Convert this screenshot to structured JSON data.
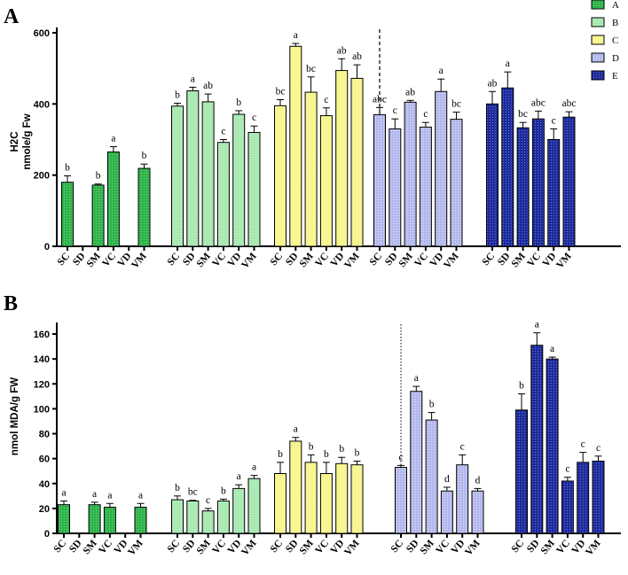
{
  "legend": [
    {
      "label": "A",
      "color": "#2db34a"
    },
    {
      "label": "B",
      "color": "#a6e8b0"
    },
    {
      "label": "C",
      "color": "#f7f58c"
    },
    {
      "label": "D",
      "color": "#b3b8ec"
    },
    {
      "label": "E",
      "color": "#1d2b9c"
    }
  ],
  "chart_data": [
    {
      "panel": "A",
      "type": "bar",
      "ylabel_line1": "H2C",
      "ylabel_line2": "nmole/g Fw",
      "ylim": [
        0,
        600
      ],
      "yticks": [
        0,
        200,
        400,
        600
      ],
      "categories": [
        "SC",
        "SD",
        "SM",
        "VC",
        "VD",
        "VM"
      ],
      "separator": "dashed",
      "groups": [
        {
          "name": "A",
          "values": [
            180,
            null,
            172,
            265,
            null,
            219
          ],
          "errors": [
            18,
            null,
            3,
            15,
            null,
            12
          ],
          "letters": [
            "b",
            "",
            "b",
            "a",
            "",
            "b"
          ]
        },
        {
          "name": "B",
          "values": [
            394,
            437,
            406,
            292,
            371,
            320
          ],
          "errors": [
            8,
            10,
            22,
            8,
            10,
            18
          ],
          "letters": [
            "b",
            "a",
            "ab",
            "c",
            "b",
            "c"
          ]
        },
        {
          "name": "C",
          "values": [
            395,
            562,
            433,
            367,
            494,
            472
          ],
          "errors": [
            17,
            8,
            43,
            22,
            33,
            38
          ],
          "letters": [
            "bc",
            "a",
            "bc",
            "c",
            "ab",
            "ab"
          ]
        },
        {
          "name": "D",
          "values": [
            370,
            330,
            405,
            335,
            435,
            357
          ],
          "errors": [
            20,
            28,
            5,
            13,
            35,
            20
          ],
          "letters": [
            "abc",
            "c",
            "ab",
            "c",
            "a",
            "bc"
          ]
        },
        {
          "name": "E",
          "values": [
            400,
            445,
            333,
            358,
            300,
            363
          ],
          "errors": [
            35,
            45,
            15,
            22,
            30,
            15
          ],
          "letters": [
            "ab",
            "a",
            "bc",
            "abc",
            "c",
            "abc"
          ]
        }
      ]
    },
    {
      "panel": "B",
      "type": "bar",
      "ylabel_line1": "nmol MDA/g FW",
      "ylim": [
        0,
        165
      ],
      "yticks": [
        0,
        20,
        40,
        60,
        80,
        100,
        120,
        140,
        160
      ],
      "categories": [
        "SC",
        "SD",
        "SM",
        "VC",
        "VD",
        "VM"
      ],
      "separator": "dotted",
      "groups": [
        {
          "name": "A",
          "values": [
            23,
            null,
            23,
            21,
            null,
            21
          ],
          "errors": [
            3,
            null,
            2,
            3,
            null,
            3
          ],
          "letters": [
            "a",
            "",
            "a",
            "a",
            "",
            "a"
          ]
        },
        {
          "name": "B",
          "values": [
            27,
            26,
            18,
            26,
            36,
            44
          ],
          "errors": [
            3,
            0.5,
            2,
            1.5,
            3,
            2.5
          ],
          "letters": [
            "b",
            "bc",
            "c",
            "b",
            "a",
            "a"
          ]
        },
        {
          "name": "C",
          "values": [
            48,
            74,
            57,
            48,
            56,
            55
          ],
          "errors": [
            9,
            3,
            6,
            9,
            5,
            3
          ],
          "letters": [
            "b",
            "a",
            "b",
            "b",
            "b",
            "b"
          ]
        },
        {
          "name": "D",
          "values": [
            53,
            114,
            91,
            34,
            55,
            34
          ],
          "errors": [
            1.5,
            4,
            6,
            3,
            8,
            2
          ],
          "letters": [
            "c",
            "a",
            "b",
            "d",
            "c",
            "d"
          ]
        },
        {
          "name": "E",
          "values": [
            99,
            151,
            140,
            42,
            57,
            58
          ],
          "errors": [
            13,
            10,
            1.5,
            3,
            8,
            4
          ],
          "letters": [
            "b",
            "a",
            "a",
            "c",
            "c",
            "c"
          ]
        }
      ]
    }
  ]
}
